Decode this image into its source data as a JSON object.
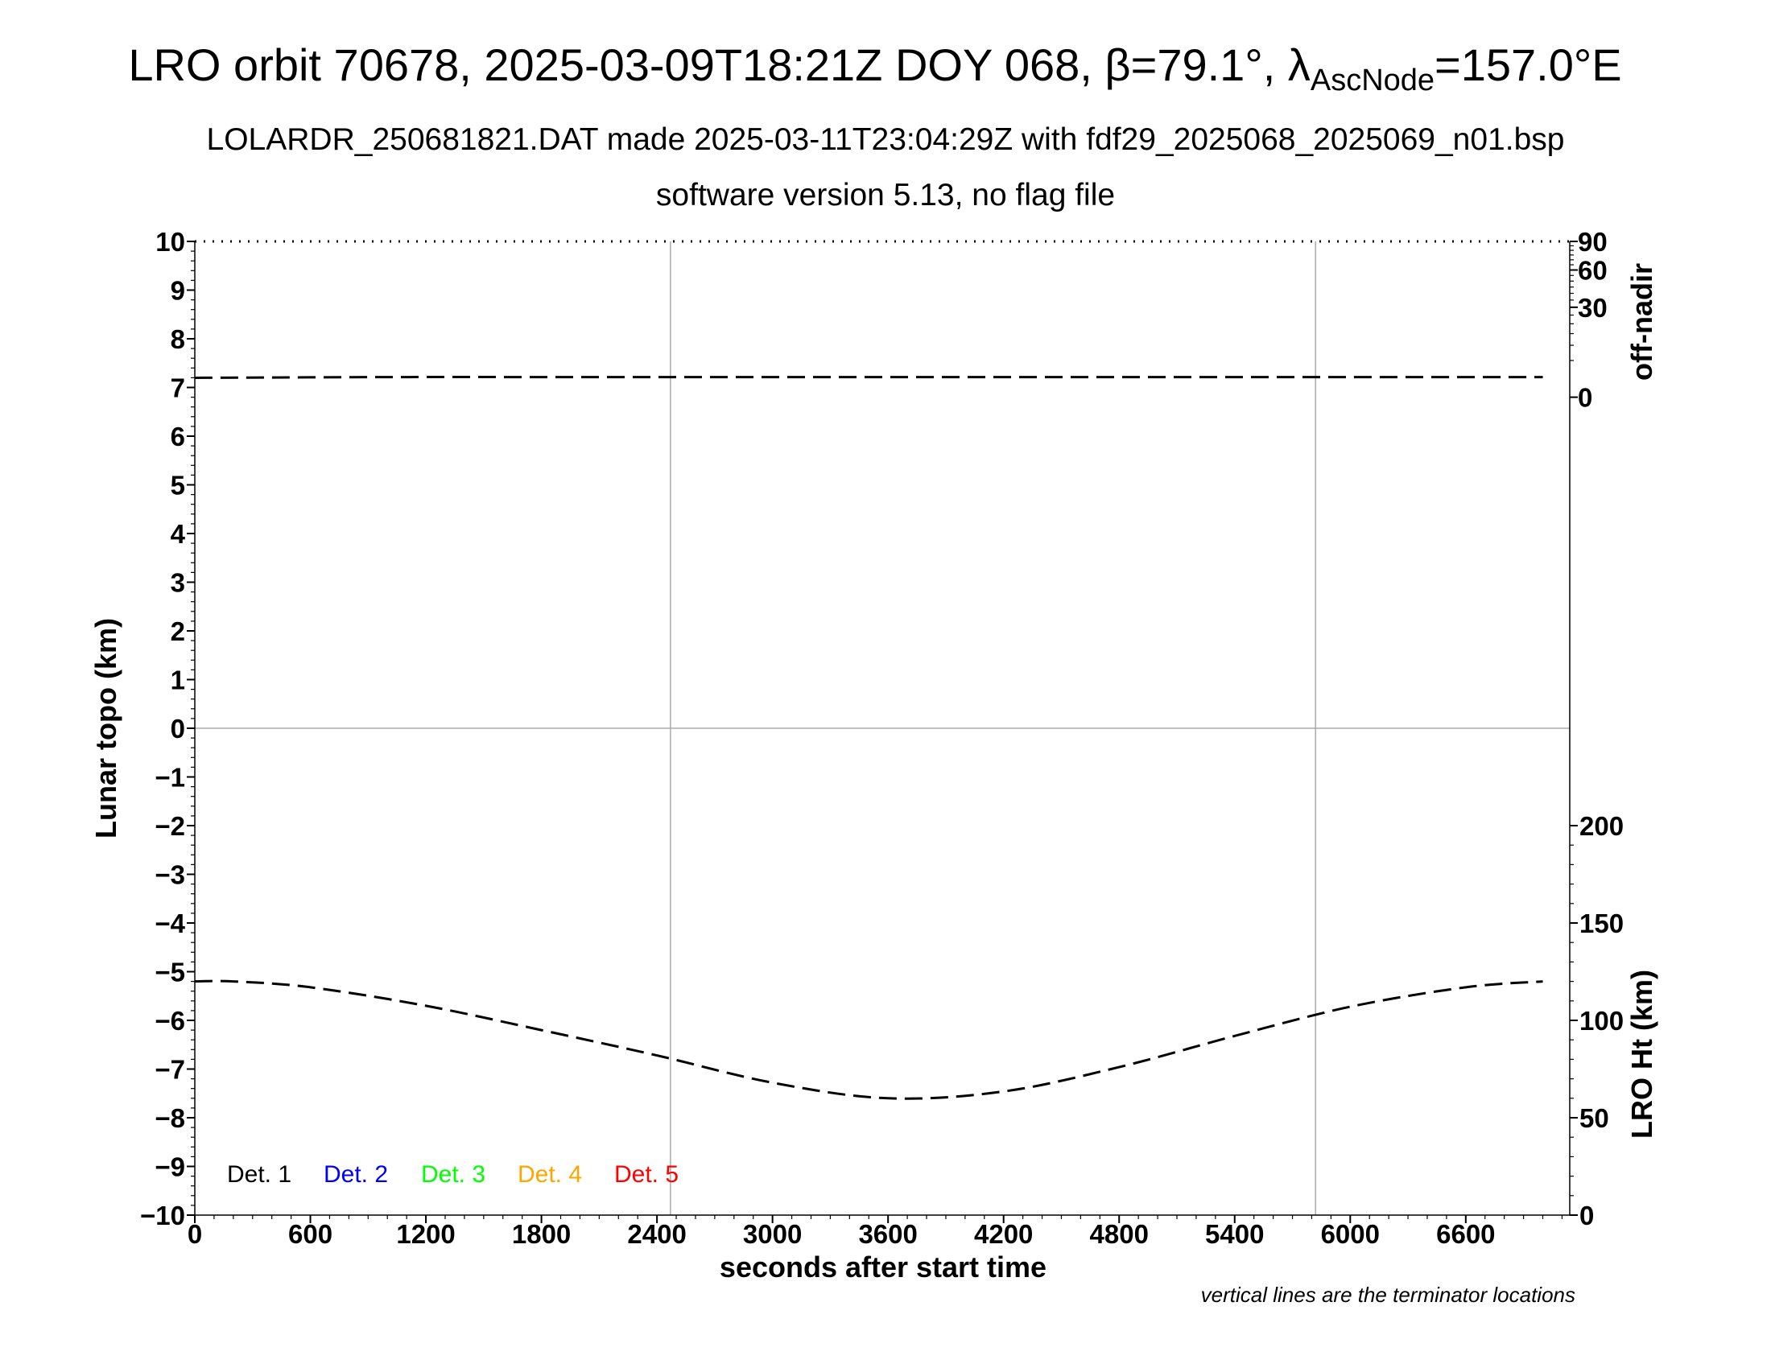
{
  "header": {
    "title_prefix": "LRO orbit 70678, 2025-03-09T18:21Z DOY 068, ",
    "beta_symbol": "β",
    "beta_value": "=79.1°, ",
    "lambda_symbol": "λ",
    "lambda_sub": "AscNode",
    "lambda_value": "=157.0°E",
    "subtitle1": "LOLARDR_250681821.DAT made 2025-03-11T23:04:29Z with fdf29_2025068_2025069_n01.bsp",
    "subtitle2": "software version 5.13, no flag file"
  },
  "footnote": "vertical lines are the terminator locations",
  "chart_data": {
    "type": "line",
    "xlabel": "seconds after start time",
    "ylabel_left": "Lunar topo (km)",
    "ylabel_right_top": "off-nadir",
    "ylabel_right_bottom": "LRO Ht (km)",
    "xlim": [
      0,
      7140
    ],
    "ylim": [
      -10,
      10
    ],
    "x_ticks": [
      0,
      600,
      1200,
      1800,
      2400,
      3000,
      3600,
      4200,
      4800,
      5400,
      6000,
      6600
    ],
    "x_tick_labels": [
      "0",
      "600",
      "1200",
      "1800",
      "2400",
      "3000",
      "3600",
      "4200",
      "4800",
      "5400",
      "6000",
      "6600"
    ],
    "y_ticks": [
      -10,
      -9,
      -8,
      -7,
      -6,
      -5,
      -4,
      -3,
      -2,
      -1,
      0,
      1,
      2,
      3,
      4,
      5,
      6,
      7,
      8,
      9,
      10
    ],
    "y_tick_labels": [
      "−10",
      "−9",
      "−8",
      "−7",
      "−6",
      "−5",
      "−4",
      "−3",
      "−2",
      "−1",
      "0",
      "1",
      "2",
      "3",
      "4",
      "5",
      "6",
      "7",
      "8",
      "9",
      "10"
    ],
    "right_top_axis": {
      "ticks": [
        0,
        30,
        60,
        90
      ],
      "tick_labels": [
        "0",
        "30",
        "60",
        "90"
      ],
      "scale": "nonlinear"
    },
    "right_bottom_axis": {
      "range": [
        0,
        300
      ],
      "ticks": [
        0,
        50,
        100,
        150,
        200
      ],
      "tick_labels": [
        "0",
        "50",
        "100",
        "150",
        "200"
      ]
    },
    "grid": {
      "vertical_x": [
        2470,
        5820
      ],
      "horizontal_y": [
        0
      ],
      "color": "#aaaaaa"
    },
    "legend": {
      "position": "lower-left",
      "items": [
        {
          "label": "Det. 1",
          "color": "#000000"
        },
        {
          "label": "Det. 2",
          "color": "#0000ff"
        },
        {
          "label": "Det. 3",
          "color": "#00ff00"
        },
        {
          "label": "Det. 4",
          "color": "#ffa500"
        },
        {
          "label": "Det. 5",
          "color": "#ff0000"
        }
      ]
    },
    "series": [
      {
        "axis": "off-nadir",
        "style": "dashed",
        "color": "#000000",
        "x": [
          0,
          1000,
          2000,
          3000,
          4000,
          5000,
          6000,
          7000
        ],
        "y": [
          1.4,
          1.5,
          1.5,
          1.5,
          1.5,
          1.5,
          1.5,
          1.5
        ]
      },
      {
        "axis": "LRO Ht (km)",
        "style": "dashed",
        "color": "#000000",
        "x": [
          0,
          200,
          600,
          1200,
          1800,
          2400,
          3000,
          3600,
          4200,
          4800,
          5400,
          6000,
          6600,
          7000
        ],
        "y": [
          120,
          120,
          117,
          107.5,
          95,
          82,
          68,
          60,
          63.5,
          76,
          92,
          107,
          117,
          120
        ]
      }
    ]
  }
}
